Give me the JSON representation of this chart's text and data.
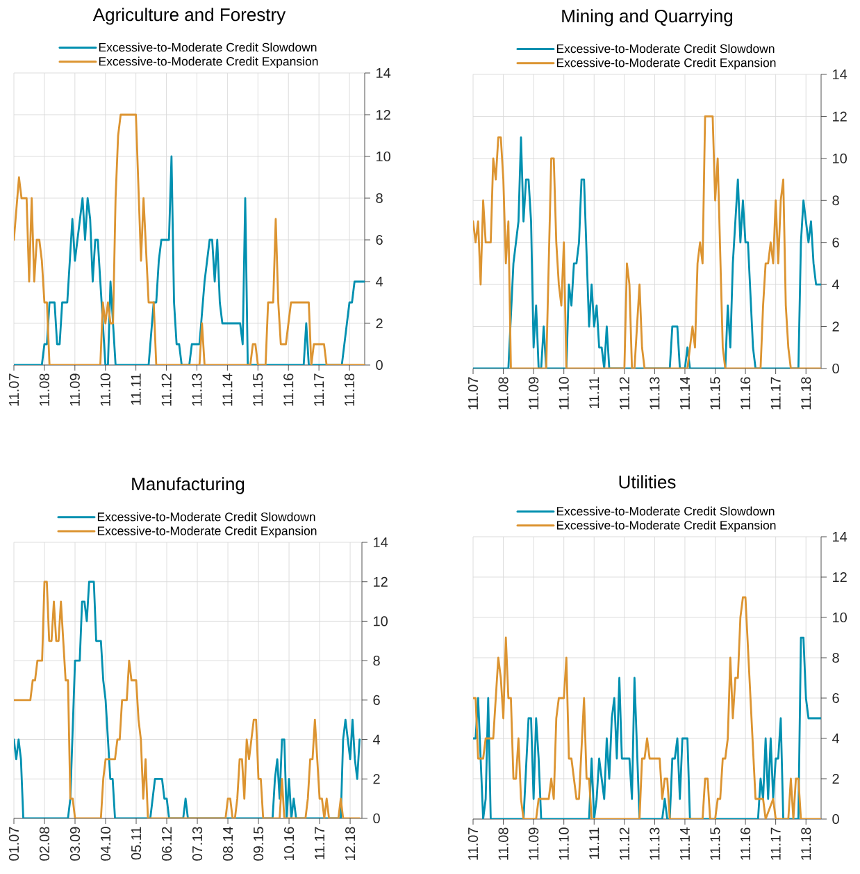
{
  "chart_data": [
    {
      "type": "line",
      "title": "Agriculture and Forestry",
      "grid": true,
      "legend": "top",
      "xlim": [
        "2007-11",
        "2019-05"
      ],
      "ylim": [
        0,
        14
      ],
      "yticks": [
        0,
        2,
        4,
        6,
        8,
        10,
        12,
        14
      ],
      "xticks": [
        {
          "value": "2007-11",
          "label": "11.07"
        },
        {
          "value": "2008-11",
          "label": "11.08"
        },
        {
          "value": "2009-11",
          "label": "11.09"
        },
        {
          "value": "2010-11",
          "label": "11.10"
        },
        {
          "value": "2011-11",
          "label": "11.11"
        },
        {
          "value": "2012-11",
          "label": "11.12"
        },
        {
          "value": "2013-11",
          "label": "11.13"
        },
        {
          "value": "2014-11",
          "label": "11.14"
        },
        {
          "value": "2015-11",
          "label": "11.15"
        },
        {
          "value": "2016-11",
          "label": "11.16"
        },
        {
          "value": "2017-11",
          "label": "11.17"
        },
        {
          "value": "2018-11",
          "label": "11.18"
        }
      ],
      "series": [
        {
          "name": "Excessive-to-Moderate Credit Slowdown",
          "color": "#0090b0",
          "x": [
            "2007-11",
            "2008-10",
            "2008-11",
            "2008-12",
            "2009-01",
            "2009-03",
            "2009-04",
            "2009-05",
            "2009-06",
            "2009-08",
            "2009-10",
            "2009-11",
            "2010-02",
            "2010-03",
            "2010-04",
            "2010-05",
            "2010-06",
            "2010-07",
            "2010-08",
            "2010-10",
            "2010-11",
            "2010-12",
            "2011-01",
            "2011-03",
            "2012-04",
            "2012-06",
            "2012-07",
            "2012-08",
            "2012-09",
            "2012-12",
            "2013-01",
            "2013-02",
            "2013-03",
            "2013-04",
            "2013-05",
            "2013-08",
            "2013-09",
            "2013-12",
            "2014-02",
            "2014-04",
            "2014-05",
            "2014-06",
            "2014-07",
            "2014-08",
            "2014-09",
            "2015-04",
            "2015-05",
            "2015-06",
            "2015-07",
            "2017-05",
            "2017-06",
            "2017-07",
            "2018-08",
            "2018-11",
            "2018-12",
            "2019-01",
            "2019-05"
          ],
          "values": [
            0,
            0,
            1,
            1,
            3,
            3,
            1,
            1,
            3,
            3,
            7,
            5,
            8,
            6,
            8,
            7,
            4,
            6,
            6,
            2,
            0,
            0,
            4,
            0,
            0,
            3,
            3,
            5,
            6,
            6,
            10,
            3,
            1,
            1,
            0,
            0,
            1,
            1,
            4,
            6,
            6,
            4,
            6,
            3,
            2,
            2,
            1,
            8,
            0,
            0,
            2,
            0,
            0,
            3,
            3,
            4,
            4
          ]
        },
        {
          "name": "Excessive-to-Moderate Credit Expansion",
          "color": "#dc9431",
          "x": [
            "2007-11",
            "2008-01",
            "2008-02",
            "2008-04",
            "2008-05",
            "2008-06",
            "2008-07",
            "2008-08",
            "2008-09",
            "2008-10",
            "2008-11",
            "2008-12",
            "2009-01",
            "2010-09",
            "2010-10",
            "2010-11",
            "2010-12",
            "2011-01",
            "2011-02",
            "2011-03",
            "2011-04",
            "2011-05",
            "2011-11",
            "2012-01",
            "2012-02",
            "2012-04",
            "2012-06",
            "2012-07",
            "2013-12",
            "2014-01",
            "2014-02",
            "2015-08",
            "2015-09",
            "2015-10",
            "2015-11",
            "2016-02",
            "2016-03",
            "2016-05",
            "2016-06",
            "2016-07",
            "2016-08",
            "2016-10",
            "2016-12",
            "2017-07",
            "2017-08",
            "2017-09",
            "2018-01",
            "2018-02",
            "2019-05"
          ],
          "values": [
            6,
            9,
            8,
            8,
            4,
            8,
            4,
            6,
            6,
            5,
            3,
            3,
            0,
            0,
            3,
            2,
            3,
            2,
            2,
            8,
            11,
            12,
            12,
            5,
            8,
            3,
            3,
            0,
            0,
            2,
            0,
            0,
            1,
            1,
            0,
            0,
            3,
            3,
            7,
            3,
            1,
            1,
            3,
            3,
            0,
            1,
            1,
            0,
            0
          ]
        }
      ]
    },
    {
      "type": "line",
      "title": "Mining and Quarrying",
      "grid": true,
      "legend": "top",
      "xlim": [
        "2007-11",
        "2019-05"
      ],
      "ylim": [
        0,
        14
      ],
      "yticks": [
        0,
        2,
        4,
        6,
        8,
        10,
        12,
        14
      ],
      "xticks": [
        {
          "value": "2007-11",
          "label": "11.07"
        },
        {
          "value": "2008-11",
          "label": "11.08"
        },
        {
          "value": "2009-11",
          "label": "11.09"
        },
        {
          "value": "2010-11",
          "label": "11.10"
        },
        {
          "value": "2011-11",
          "label": "11.11"
        },
        {
          "value": "2012-11",
          "label": "11.12"
        },
        {
          "value": "2013-11",
          "label": "11.13"
        },
        {
          "value": "2014-11",
          "label": "11.14"
        },
        {
          "value": "2015-11",
          "label": "11.15"
        },
        {
          "value": "2016-11",
          "label": "11.16"
        },
        {
          "value": "2017-11",
          "label": "11.17"
        },
        {
          "value": "2018-11",
          "label": "11.18"
        }
      ],
      "series": [
        {
          "name": "Excessive-to-Moderate Credit Slowdown",
          "color": "#0090b0",
          "x": [
            "2007-11",
            "2009-01",
            "2009-03",
            "2009-05",
            "2009-06",
            "2009-07",
            "2009-08",
            "2009-09",
            "2009-10",
            "2009-11",
            "2009-12",
            "2010-01",
            "2010-02",
            "2010-03",
            "2010-04",
            "2010-12",
            "2011-01",
            "2011-02",
            "2011-03",
            "2011-04",
            "2011-05",
            "2011-06",
            "2011-07",
            "2011-09",
            "2011-10",
            "2011-11",
            "2011-12",
            "2012-01",
            "2012-02",
            "2012-03",
            "2012-04",
            "2012-05",
            "2014-05",
            "2014-06",
            "2014-08",
            "2014-09",
            "2014-11",
            "2014-12",
            "2015-01",
            "2016-03",
            "2016-04",
            "2016-05",
            "2016-06",
            "2016-08",
            "2016-09",
            "2016-10",
            "2016-11",
            "2016-12",
            "2017-02",
            "2017-03",
            "2018-08",
            "2018-09",
            "2018-10",
            "2018-12",
            "2019-01",
            "2019-02",
            "2019-03",
            "2019-05"
          ],
          "values": [
            0,
            0,
            5,
            7,
            11,
            7,
            9,
            9,
            7,
            1,
            3,
            0,
            0,
            2,
            0,
            0,
            4,
            3,
            5,
            5,
            6,
            9,
            9,
            2,
            4,
            2,
            3,
            1,
            1,
            0,
            2,
            0,
            0,
            2,
            2,
            0,
            0,
            1,
            0,
            0,
            3,
            1,
            5,
            9,
            6,
            8,
            6,
            6,
            1,
            0,
            0,
            6,
            8,
            6,
            7,
            5,
            4,
            4
          ]
        },
        {
          "name": "Excessive-to-Moderate Credit Expansion",
          "color": "#dc9431",
          "x": [
            "2007-11",
            "2007-12",
            "2008-01",
            "2008-02",
            "2008-03",
            "2008-04",
            "2008-06",
            "2008-07",
            "2008-08",
            "2008-09",
            "2008-10",
            "2008-11",
            "2008-12",
            "2009-01",
            "2009-02",
            "2010-04",
            "2010-06",
            "2010-07",
            "2010-08",
            "2010-09",
            "2010-10",
            "2010-11",
            "2010-12",
            "2012-11",
            "2012-12",
            "2013-01",
            "2013-02",
            "2013-03",
            "2013-05",
            "2013-06",
            "2013-07",
            "2014-12",
            "2015-02",
            "2015-03",
            "2015-04",
            "2015-05",
            "2015-06",
            "2015-07",
            "2015-10",
            "2015-11",
            "2015-12",
            "2016-02",
            "2016-03",
            "2017-05",
            "2017-06",
            "2017-07",
            "2017-08",
            "2017-09",
            "2017-10",
            "2017-11",
            "2017-12",
            "2018-01",
            "2018-02",
            "2018-03",
            "2018-04",
            "2018-05",
            "2019-05"
          ],
          "values": [
            7,
            6,
            7,
            4,
            8,
            6,
            6,
            10,
            9,
            11,
            11,
            9,
            5,
            7,
            0,
            0,
            10,
            10,
            6,
            4,
            3,
            6,
            0,
            0,
            5,
            4,
            0,
            0,
            4,
            1,
            0,
            0,
            2,
            1,
            5,
            6,
            5,
            12,
            12,
            8,
            10,
            1,
            0,
            0,
            3,
            5,
            5,
            6,
            5,
            8,
            5,
            8,
            9,
            3,
            1,
            0,
            0
          ]
        }
      ]
    },
    {
      "type": "line",
      "title": "Manufacturing",
      "grid": true,
      "legend": "top",
      "xlim": [
        "2007-01",
        "2019-05"
      ],
      "ylim": [
        0,
        14
      ],
      "yticks": [
        0,
        2,
        4,
        6,
        8,
        10,
        12,
        14
      ],
      "xticks": [
        {
          "value": "2007-01",
          "label": "01.07"
        },
        {
          "value": "2008-02",
          "label": "02.08"
        },
        {
          "value": "2009-03",
          "label": "03.09"
        },
        {
          "value": "2010-04",
          "label": "04.10"
        },
        {
          "value": "2011-05",
          "label": "05.11"
        },
        {
          "value": "2012-06",
          "label": "06.12"
        },
        {
          "value": "2013-07",
          "label": "07.13"
        },
        {
          "value": "2014-08",
          "label": "08.14"
        },
        {
          "value": "2015-09",
          "label": "09.15"
        },
        {
          "value": "2016-10",
          "label": "10.16"
        },
        {
          "value": "2017-11",
          "label": "11.17"
        },
        {
          "value": "2018-12",
          "label": "12.18"
        }
      ],
      "series": [
        {
          "name": "Excessive-to-Moderate Credit Slowdown",
          "color": "#0090b0",
          "x": [
            "2007-01",
            "2007-02",
            "2007-03",
            "2007-04",
            "2007-05",
            "2008-12",
            "2009-01",
            "2009-03",
            "2009-05",
            "2009-06",
            "2009-07",
            "2009-08",
            "2009-09",
            "2009-11",
            "2009-12",
            "2010-02",
            "2010-03",
            "2010-04",
            "2010-06",
            "2010-07",
            "2010-08",
            "2011-11",
            "2012-01",
            "2012-04",
            "2012-05",
            "2012-06",
            "2012-07",
            "2013-01",
            "2013-02",
            "2013-03",
            "2016-03",
            "2016-04",
            "2016-05",
            "2016-06",
            "2016-07",
            "2016-08",
            "2016-09",
            "2016-10",
            "2016-11",
            "2016-12",
            "2017-01",
            "2018-08",
            "2018-09",
            "2018-10",
            "2018-12",
            "2019-01",
            "2019-02",
            "2019-03",
            "2019-04"
          ],
          "values": [
            4,
            3,
            4,
            3,
            0,
            0,
            1,
            8,
            8,
            11,
            11,
            10,
            12,
            12,
            9,
            9,
            7,
            6,
            2,
            2,
            0,
            0,
            2,
            2,
            1,
            1,
            0,
            0,
            1,
            0,
            0,
            2,
            3,
            1,
            4,
            4,
            0,
            2,
            0,
            1,
            0,
            0,
            4,
            5,
            3,
            5,
            3,
            2,
            4
          ]
        },
        {
          "name": "Excessive-to-Moderate Credit Expansion",
          "color": "#dc9431",
          "x": [
            "2007-01",
            "2007-08",
            "2007-09",
            "2007-10",
            "2007-11",
            "2008-01",
            "2008-02",
            "2008-03",
            "2008-04",
            "2008-05",
            "2008-06",
            "2008-07",
            "2008-08",
            "2008-09",
            "2008-11",
            "2008-12",
            "2009-01",
            "2009-02",
            "2009-03",
            "2010-02",
            "2010-03",
            "2010-04",
            "2010-08",
            "2010-09",
            "2010-10",
            "2010-11",
            "2011-01",
            "2011-02",
            "2011-03",
            "2011-05",
            "2011-06",
            "2011-07",
            "2011-08",
            "2011-09",
            "2011-10",
            "2014-07",
            "2014-08",
            "2014-09",
            "2014-10",
            "2014-11",
            "2014-12",
            "2015-01",
            "2015-02",
            "2015-03",
            "2015-04",
            "2015-05",
            "2015-07",
            "2015-08",
            "2015-09",
            "2015-10",
            "2015-11",
            "2016-06",
            "2016-07",
            "2016-08",
            "2017-05",
            "2017-06",
            "2017-07",
            "2017-08",
            "2017-09",
            "2017-10",
            "2017-11",
            "2017-12",
            "2018-01",
            "2018-02",
            "2018-03",
            "2018-07",
            "2018-08",
            "2018-09",
            "2019-04"
          ],
          "values": [
            6,
            6,
            7,
            7,
            8,
            8,
            12,
            12,
            9,
            9,
            11,
            9,
            9,
            11,
            7,
            7,
            1,
            1,
            0,
            0,
            2,
            3,
            3,
            4,
            4,
            6,
            6,
            8,
            7,
            7,
            5,
            4,
            1,
            3,
            0,
            0,
            1,
            1,
            0,
            0,
            1,
            3,
            3,
            1,
            4,
            3,
            5,
            5,
            2,
            2,
            0,
            0,
            2,
            0,
            0,
            1,
            3,
            3,
            5,
            3,
            1,
            1,
            0,
            1,
            0,
            0,
            1,
            0,
            0
          ]
        }
      ]
    },
    {
      "type": "line",
      "title": "Utilities",
      "grid": true,
      "legend": "top",
      "xlim": [
        "2007-11",
        "2019-05"
      ],
      "ylim": [
        0,
        14
      ],
      "yticks": [
        0,
        2,
        4,
        6,
        8,
        10,
        12,
        14
      ],
      "xticks": [
        {
          "value": "2007-11",
          "label": "11.07"
        },
        {
          "value": "2008-11",
          "label": "11.08"
        },
        {
          "value": "2009-11",
          "label": "11.09"
        },
        {
          "value": "2010-11",
          "label": "11.10"
        },
        {
          "value": "2011-11",
          "label": "11.11"
        },
        {
          "value": "2012-11",
          "label": "11.12"
        },
        {
          "value": "2013-11",
          "label": "11.13"
        },
        {
          "value": "2014-11",
          "label": "11.14"
        },
        {
          "value": "2015-11",
          "label": "11.15"
        },
        {
          "value": "2016-11",
          "label": "11.16"
        },
        {
          "value": "2017-11",
          "label": "11.17"
        },
        {
          "value": "2018-11",
          "label": "11.18"
        }
      ],
      "series": [
        {
          "name": "Excessive-to-Moderate Credit Slowdown",
          "color": "#0090b0",
          "x": [
            "2007-11",
            "2007-12",
            "2008-01",
            "2008-02",
            "2008-03",
            "2008-04",
            "2008-05",
            "2008-06",
            "2009-07",
            "2009-09",
            "2009-10",
            "2009-11",
            "2009-12",
            "2010-01",
            "2010-02",
            "2011-09",
            "2011-10",
            "2011-11",
            "2011-12",
            "2012-01",
            "2012-03",
            "2012-04",
            "2012-05",
            "2012-06",
            "2012-07",
            "2012-08",
            "2012-09",
            "2012-10",
            "2013-01",
            "2013-02",
            "2013-03",
            "2013-05",
            "2014-02",
            "2014-03",
            "2014-04",
            "2014-05",
            "2014-06",
            "2014-07",
            "2014-08",
            "2014-09",
            "2014-10",
            "2014-12",
            "2015-01",
            "2017-04",
            "2017-05",
            "2017-06",
            "2017-07",
            "2017-08",
            "2017-09",
            "2017-10",
            "2017-11",
            "2017-12",
            "2018-01",
            "2018-02",
            "2018-08",
            "2018-09",
            "2018-10",
            "2018-11",
            "2018-12",
            "2019-05"
          ],
          "values": [
            4,
            4,
            6,
            3,
            0,
            1,
            6,
            0,
            0,
            5,
            5,
            1,
            5,
            3,
            0,
            0,
            3,
            0,
            1,
            3,
            1,
            4,
            2,
            5,
            6,
            3,
            7,
            3,
            3,
            1,
            7,
            0,
            0,
            1,
            0,
            0,
            3,
            3,
            4,
            1,
            4,
            4,
            0,
            0,
            2,
            1,
            4,
            1,
            4,
            1,
            3,
            3,
            5,
            0,
            0,
            9,
            9,
            6,
            5,
            5
          ]
        },
        {
          "name": "Excessive-to-Moderate Credit Expansion",
          "color": "#dc9431",
          "x": [
            "2007-11",
            "2007-12",
            "2008-01",
            "2008-03",
            "2008-04",
            "2008-07",
            "2008-09",
            "2008-10",
            "2008-11",
            "2008-12",
            "2009-01",
            "2009-02",
            "2009-03",
            "2009-04",
            "2009-05",
            "2009-06",
            "2009-07",
            "2009-12",
            "2010-01",
            "2010-05",
            "2010-06",
            "2010-07",
            "2010-08",
            "2010-09",
            "2010-11",
            "2010-12",
            "2011-01",
            "2011-02",
            "2011-04",
            "2011-05",
            "2011-07",
            "2011-08",
            "2011-09",
            "2011-10",
            "2013-05",
            "2013-06",
            "2013-07",
            "2013-08",
            "2013-09",
            "2014-01",
            "2014-02",
            "2014-03",
            "2014-04",
            "2014-05",
            "2015-06",
            "2015-07",
            "2015-08",
            "2015-09",
            "2015-11",
            "2015-12",
            "2016-01",
            "2016-02",
            "2016-03",
            "2016-04",
            "2016-05",
            "2016-06",
            "2016-07",
            "2016-08",
            "2016-09",
            "2016-10",
            "2016-11",
            "2017-01",
            "2017-03",
            "2017-06",
            "2017-07",
            "2017-10",
            "2017-11",
            "2018-04",
            "2018-05",
            "2018-06",
            "2018-07",
            "2018-08",
            "2018-09",
            "2019-05"
          ],
          "values": [
            6,
            6,
            3,
            3,
            4,
            4,
            8,
            7,
            5,
            9,
            6,
            6,
            2,
            2,
            4,
            1,
            0,
            0,
            1,
            1,
            2,
            1,
            5,
            6,
            6,
            8,
            3,
            3,
            1,
            1,
            6,
            2,
            2,
            0,
            0,
            3,
            3,
            4,
            3,
            3,
            1,
            2,
            2,
            0,
            0,
            2,
            2,
            0,
            0,
            1,
            1,
            3,
            3,
            4,
            8,
            5,
            7,
            7,
            10,
            11,
            11,
            6,
            1,
            1,
            0,
            1,
            0,
            0,
            2,
            0,
            2,
            2,
            0,
            0
          ]
        }
      ]
    }
  ]
}
